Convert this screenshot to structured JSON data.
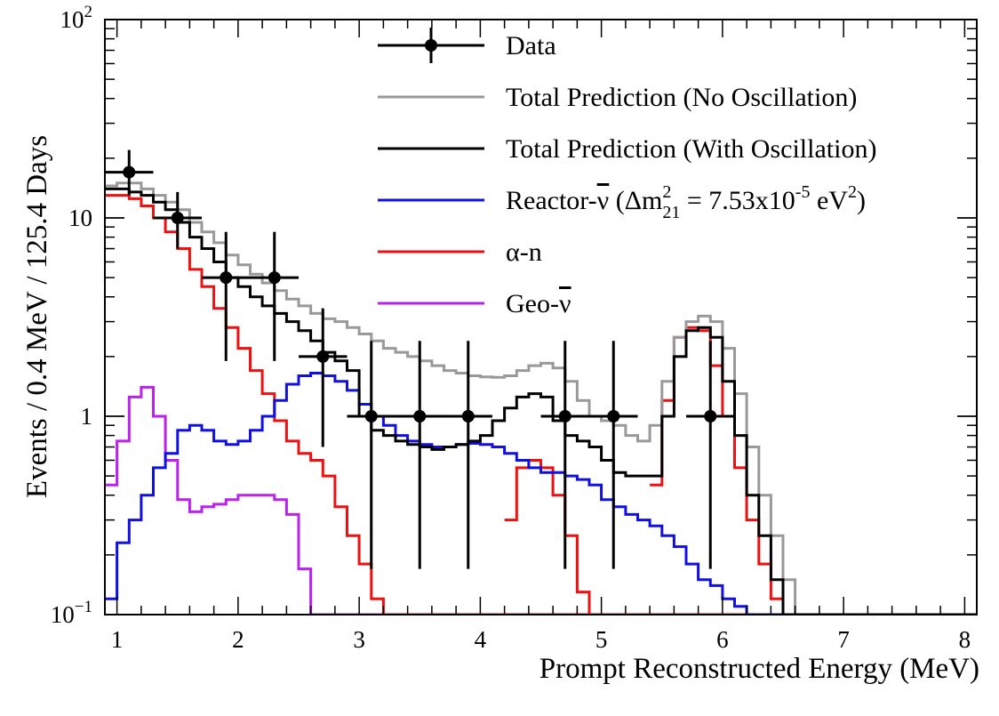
{
  "chart_data": {
    "type": "line",
    "xlabel": "Prompt Reconstructed Energy (MeV)",
    "ylabel": "Events / 0.4 MeV / 125.4 Days",
    "xlim": [
      0.9,
      8.1
    ],
    "ylim": [
      0.1,
      100
    ],
    "yscale": "log",
    "grid": false,
    "legend_position": "top-right",
    "x_tick_labels": [
      "1",
      "2",
      "3",
      "4",
      "5",
      "6",
      "7",
      "8"
    ],
    "y_tick_labels": [
      {
        "value": 0.1,
        "base": "10",
        "exp": "−1",
        "text": ""
      },
      {
        "value": 1,
        "base": "",
        "exp": "",
        "text": "1"
      },
      {
        "value": 10,
        "base": "",
        "exp": "",
        "text": "10"
      },
      {
        "value": 100,
        "base": "10",
        "exp": "2",
        "text": ""
      }
    ],
    "bin_width": 0.1,
    "hist_start": 0.9,
    "series": [
      {
        "name": "Total Prediction (No Oscillation)",
        "color": "#999999",
        "values": [
          14.5,
          15,
          15,
          14,
          13,
          12,
          11,
          9.5,
          8.5,
          7.5,
          6.5,
          5.8,
          5.2,
          4.7,
          4.3,
          3.9,
          3.6,
          3.3,
          3.1,
          3.0,
          2.8,
          2.6,
          2.4,
          2.2,
          2.1,
          2.0,
          1.9,
          1.8,
          1.7,
          1.65,
          1.6,
          1.58,
          1.57,
          1.6,
          1.7,
          1.8,
          1.85,
          1.75,
          1.5,
          1.2,
          1.0,
          0.95,
          0.9,
          0.8,
          0.75,
          0.9,
          1.5,
          2.5,
          3.0,
          3.2,
          3.0,
          2.2,
          1.3,
          0.7,
          0.4,
          0.25,
          0.15,
          0.1,
          0.1,
          0.1,
          0.1,
          0.1,
          0.1,
          0.1,
          0.1,
          0.1,
          0.1,
          0.1,
          0.1,
          0.1,
          0.1,
          0.1
        ]
      },
      {
        "name": "Total Prediction (With Oscillation)",
        "color": "#000000",
        "values": [
          14,
          14,
          13.5,
          13,
          12,
          11,
          9.5,
          8,
          7,
          6,
          5,
          4.5,
          4.0,
          3.6,
          3.3,
          3.0,
          2.7,
          2.4,
          2.1,
          1.9,
          1.7,
          1.0,
          0.85,
          0.8,
          0.75,
          0.72,
          0.7,
          0.68,
          0.7,
          0.72,
          0.75,
          0.8,
          0.95,
          1.1,
          1.25,
          1.3,
          1.25,
          0.95,
          0.8,
          0.75,
          0.7,
          0.6,
          0.52,
          0.5,
          0.5,
          0.5,
          1.0,
          2.0,
          2.7,
          2.8,
          2.5,
          1.5,
          0.8,
          0.4,
          0.25,
          0.15,
          0.1,
          0.1,
          0.1,
          0.1,
          0.1,
          0.1,
          0.1,
          0.1,
          0.1,
          0.1,
          0.1,
          0.1,
          0.1,
          0.1,
          0.1,
          0.1
        ]
      },
      {
        "name": "Reactor-ν̄ (Δm²₂₁ = 7.53x10⁻⁵ eV²)",
        "color": "#1010e0",
        "values": [
          0.12,
          0.23,
          0.3,
          0.4,
          0.55,
          0.65,
          0.85,
          0.9,
          0.85,
          0.75,
          0.72,
          0.75,
          0.85,
          1.0,
          1.2,
          1.45,
          1.6,
          1.65,
          1.6,
          1.5,
          1.35,
          1.15,
          1.0,
          0.9,
          0.8,
          0.75,
          0.72,
          0.7,
          0.7,
          0.72,
          0.73,
          0.72,
          0.7,
          0.65,
          0.6,
          0.55,
          0.52,
          0.52,
          0.5,
          0.48,
          0.45,
          0.38,
          0.35,
          0.32,
          0.3,
          0.28,
          0.25,
          0.22,
          0.18,
          0.15,
          0.14,
          0.12,
          0.11,
          0.1,
          0.1,
          0.1,
          0.1,
          0.1,
          0.1,
          0.1,
          0.1,
          0.1,
          0.1,
          0.1,
          0.1,
          0.1,
          0.1,
          0.1,
          0.1,
          0.1,
          0.1,
          0.1
        ]
      },
      {
        "name": "α-n",
        "color": "#ee1111",
        "values": [
          13,
          13,
          12.5,
          11.5,
          10,
          8.5,
          7,
          5.5,
          4.5,
          3.5,
          2.8,
          2.2,
          1.7,
          1.3,
          0.95,
          0.75,
          0.65,
          0.6,
          0.5,
          0.35,
          0.25,
          0.18,
          0.12,
          0.1,
          0.1,
          0.1,
          0.1,
          0.1,
          0.1,
          0.1,
          0.1,
          0.1,
          0.1,
          0.1,
          0.1,
          0.1,
          0.1,
          0.1,
          0.1,
          0.1,
          0.1,
          0.1,
          0.1,
          0.1,
          0.1,
          0.1,
          0.1,
          0.1,
          0.1,
          0.1,
          0.1,
          0.1,
          0.1,
          0.1,
          0.1,
          0.1,
          0.1,
          0.1,
          0.1,
          0.1,
          0.1,
          0.1,
          0.1,
          0.1,
          0.1,
          0.1,
          0.1,
          0.1,
          0.1,
          0.1,
          0.1,
          0.1
        ],
        "segments": [
          {
            "start": 4.2,
            "values": [
              0.3,
              0.55,
              0.6,
              0.55,
              0.4,
              0.25,
              0.13,
              0.1,
              0.1,
              0.1,
              0.1,
              0.1,
              0.1
            ]
          },
          {
            "start": 5.4,
            "values": [
              0.45,
              1.2,
              2.5,
              2.8,
              2.7,
              1.8,
              1.0,
              0.55,
              0.3,
              0.18,
              0.12,
              0.1
            ]
          }
        ]
      },
      {
        "name": "Geo-ν̄",
        "color": "#bb22ee",
        "values": [
          0.45,
          0.75,
          1.25,
          1.4,
          1.0,
          0.6,
          0.38,
          0.33,
          0.35,
          0.36,
          0.38,
          0.4,
          0.4,
          0.4,
          0.38,
          0.32,
          0.17,
          0.1,
          0.1,
          0.1,
          0.1,
          0.1,
          0.1,
          0.1,
          0.1,
          0.1,
          0.1,
          0.1,
          0.1,
          0.1,
          0.1,
          0.1,
          0.1,
          0.1,
          0.1,
          0.1,
          0.1,
          0.1,
          0.1,
          0.1,
          0.1,
          0.1,
          0.1,
          0.1,
          0.1,
          0.1,
          0.1,
          0.1,
          0.1,
          0.1,
          0.1,
          0.1,
          0.1,
          0.1,
          0.1,
          0.1,
          0.1,
          0.1,
          0.1,
          0.1,
          0.1,
          0.1,
          0.1,
          0.1,
          0.1,
          0.1,
          0.1,
          0.1,
          0.1,
          0.1,
          0.1,
          0.1
        ]
      }
    ],
    "data_points": {
      "name": "Data",
      "color": "#000000",
      "points": [
        {
          "x": 1.1,
          "y": 17,
          "xerr": 0.2,
          "ylo": 13,
          "yhi": 22
        },
        {
          "x": 1.5,
          "y": 10,
          "xerr": 0.2,
          "ylo": 7,
          "yhi": 13.5
        },
        {
          "x": 1.9,
          "y": 5,
          "xerr": 0.2,
          "ylo": 1.9,
          "yhi": 8.5
        },
        {
          "x": 2.3,
          "y": 5,
          "xerr": 0.2,
          "ylo": 1.9,
          "yhi": 8.5
        },
        {
          "x": 2.7,
          "y": 2,
          "xerr": 0.2,
          "ylo": 0.7,
          "yhi": 3.5
        },
        {
          "x": 3.1,
          "y": 1,
          "xerr": 0.2,
          "ylo": 0.17,
          "yhi": 2.4
        },
        {
          "x": 3.5,
          "y": 1,
          "xerr": 0.2,
          "ylo": 0.17,
          "yhi": 2.4
        },
        {
          "x": 3.9,
          "y": 1,
          "xerr": 0.2,
          "ylo": 0.17,
          "yhi": 2.4
        },
        {
          "x": 4.7,
          "y": 1,
          "xerr": 0.2,
          "ylo": 0.17,
          "yhi": 2.4
        },
        {
          "x": 5.1,
          "y": 1,
          "xerr": 0.2,
          "ylo": 0.17,
          "yhi": 2.4
        },
        {
          "x": 5.9,
          "y": 1,
          "xerr": 0.2,
          "ylo": 0.17,
          "yhi": 2.4
        }
      ]
    },
    "legend": [
      {
        "label": "Data",
        "kind": "marker",
        "color": "#000000"
      },
      {
        "label": "Total Prediction (No Oscillation)",
        "kind": "line",
        "color": "#999999"
      },
      {
        "label": "Total Prediction (With Oscillation)",
        "kind": "line",
        "color": "#000000"
      },
      {
        "label": "Reactor-ν̄ (Δm²₂₁ = 7.53x10⁻⁵ eV²)",
        "kind": "line",
        "color": "#1010e0",
        "parts": {
          "prefix": "Reactor-",
          "nu": "ν",
          "mid": " (Δm",
          "sup": "2",
          "sub": "21",
          "eq": " = 7.53x10",
          "exp": "-5",
          "unit": " eV",
          "unitexp": "2",
          "close": ")"
        }
      },
      {
        "label": "α-n",
        "kind": "line",
        "color": "#ee1111"
      },
      {
        "label": "Geo-ν̄",
        "kind": "line",
        "color": "#bb22ee",
        "parts": {
          "prefix": "Geo-",
          "nu": "ν"
        }
      }
    ]
  }
}
